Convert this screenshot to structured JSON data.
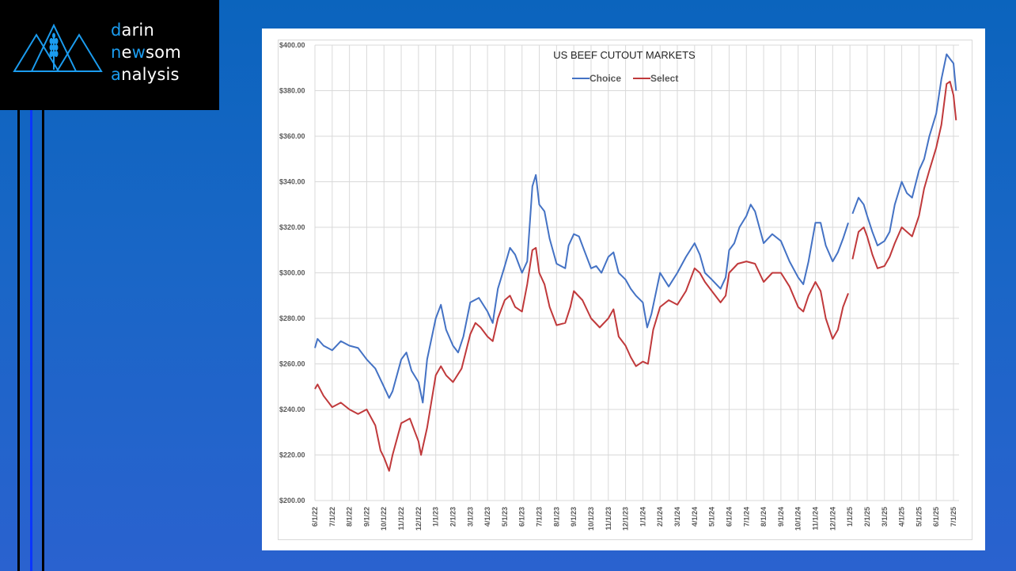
{
  "logo": {
    "lines": [
      {
        "first": "d",
        "rest": "arin"
      },
      {
        "first": "n",
        "mid": "e",
        "hl2": "w",
        "rest": "som"
      },
      {
        "first": "a",
        "rest": "nalysis"
      }
    ],
    "accent_color": "#1b9cef",
    "icon": "mountains-wheat-icon"
  },
  "chart_data": {
    "type": "line",
    "title": "US BEEF CUTOUT MARKETS",
    "xlabel": "",
    "ylabel": "",
    "ylim": [
      200,
      400
    ],
    "y_ticks": [
      "$200.00",
      "$220.00",
      "$240.00",
      "$260.00",
      "$280.00",
      "$300.00",
      "$320.00",
      "$340.00",
      "$360.00",
      "$380.00",
      "$400.00"
    ],
    "y_tick_values": [
      200,
      220,
      240,
      260,
      280,
      300,
      320,
      340,
      360,
      380,
      400
    ],
    "x_ticks": [
      "6/1/22",
      "7/1/22",
      "8/1/22",
      "9/1/22",
      "10/1/22",
      "11/1/22",
      "12/1/22",
      "1/1/23",
      "2/1/23",
      "3/1/23",
      "4/1/23",
      "5/1/23",
      "6/1/23",
      "7/1/23",
      "8/1/23",
      "9/1/23",
      "10/1/23",
      "11/1/23",
      "12/1/23",
      "1/1/24",
      "2/1/24",
      "3/1/24",
      "4/1/24",
      "5/1/24",
      "6/1/24",
      "7/1/24",
      "8/1/24",
      "9/1/24",
      "10/1/24",
      "11/1/24",
      "12/1/24",
      "1/1/25",
      "2/1/25",
      "3/1/25",
      "4/1/25",
      "5/1/25",
      "6/1/25",
      "7/1/25"
    ],
    "x_unit": "months since 6/1/22",
    "grid": true,
    "legend": "top-center",
    "series": [
      {
        "name": "Choice",
        "color": "#4472c4",
        "segments": [
          [
            [
              0,
              267
            ],
            [
              0.15,
              271
            ],
            [
              0.5,
              268
            ],
            [
              1,
              266
            ],
            [
              1.5,
              270
            ],
            [
              2,
              268
            ],
            [
              2.5,
              267
            ],
            [
              3,
              262
            ],
            [
              3.5,
              258
            ],
            [
              4,
              250
            ],
            [
              4.3,
              245
            ],
            [
              4.5,
              248
            ],
            [
              5,
              262
            ],
            [
              5.3,
              265
            ],
            [
              5.6,
              257
            ],
            [
              6,
              252
            ],
            [
              6.25,
              243
            ],
            [
              6.5,
              262
            ],
            [
              7,
              280
            ],
            [
              7.3,
              286
            ],
            [
              7.6,
              275
            ],
            [
              8,
              268
            ],
            [
              8.3,
              265
            ],
            [
              8.6,
              272
            ],
            [
              9,
              287
            ],
            [
              9.5,
              289
            ],
            [
              10,
              283
            ],
            [
              10.3,
              278
            ],
            [
              10.6,
              293
            ],
            [
              11,
              303
            ],
            [
              11.3,
              311
            ],
            [
              11.6,
              308
            ],
            [
              12,
              300
            ],
            [
              12.3,
              305
            ],
            [
              12.6,
              338
            ],
            [
              12.8,
              343
            ],
            [
              13,
              330
            ],
            [
              13.3,
              327
            ],
            [
              13.6,
              315
            ],
            [
              14,
              304
            ],
            [
              14.5,
              302
            ],
            [
              14.7,
              312
            ],
            [
              15,
              317
            ],
            [
              15.3,
              316
            ],
            [
              15.6,
              310
            ],
            [
              16,
              302
            ],
            [
              16.3,
              303
            ],
            [
              16.6,
              300
            ],
            [
              17,
              307
            ],
            [
              17.3,
              309
            ],
            [
              17.6,
              300
            ],
            [
              18,
              297
            ],
            [
              18.3,
              293
            ],
            [
              18.6,
              290
            ],
            [
              19,
              287
            ],
            [
              19.25,
              276
            ],
            [
              19.5,
              282
            ],
            [
              20,
              300
            ],
            [
              20.5,
              294
            ],
            [
              21,
              300
            ],
            [
              21.5,
              307
            ],
            [
              22,
              313
            ],
            [
              22.3,
              308
            ],
            [
              22.6,
              300
            ],
            [
              23,
              297
            ],
            [
              23.5,
              293
            ],
            [
              23.8,
              298
            ],
            [
              24,
              310
            ],
            [
              24.3,
              313
            ],
            [
              24.6,
              320
            ],
            [
              25,
              325
            ],
            [
              25.25,
              330
            ],
            [
              25.5,
              327
            ],
            [
              26,
              313
            ],
            [
              26.5,
              317
            ],
            [
              27,
              314
            ],
            [
              27.5,
              305
            ],
            [
              28,
              298
            ],
            [
              28.3,
              295
            ],
            [
              28.6,
              305
            ],
            [
              29,
              322
            ],
            [
              29.3,
              322
            ],
            [
              29.6,
              312
            ],
            [
              30,
              305
            ],
            [
              30.3,
              309
            ],
            [
              30.6,
              315
            ],
            [
              30.9,
              322
            ]
          ],
          [
            [
              31.15,
              326
            ],
            [
              31.5,
              333
            ],
            [
              31.8,
              330
            ],
            [
              32,
              325
            ],
            [
              32.3,
              318
            ],
            [
              32.6,
              312
            ],
            [
              33,
              314
            ],
            [
              33.3,
              318
            ],
            [
              33.6,
              330
            ],
            [
              34,
              340
            ],
            [
              34.3,
              335
            ],
            [
              34.6,
              333
            ],
            [
              35,
              345
            ],
            [
              35.3,
              350
            ],
            [
              35.6,
              360
            ],
            [
              36,
              370
            ],
            [
              36.3,
              385
            ],
            [
              36.6,
              396
            ],
            [
              36.8,
              394
            ],
            [
              37,
              392
            ],
            [
              37.15,
              380
            ]
          ]
        ]
      },
      {
        "name": "Select",
        "color": "#c0393b",
        "segments": [
          [
            [
              0,
              249
            ],
            [
              0.15,
              251
            ],
            [
              0.5,
              246
            ],
            [
              1,
              241
            ],
            [
              1.5,
              243
            ],
            [
              2,
              240
            ],
            [
              2.5,
              238
            ],
            [
              3,
              240
            ],
            [
              3.5,
              233
            ],
            [
              3.8,
              222
            ],
            [
              4,
              219
            ],
            [
              4.3,
              213
            ],
            [
              4.5,
              220
            ],
            [
              5,
              234
            ],
            [
              5.5,
              236
            ],
            [
              5.8,
              230
            ],
            [
              6,
              226
            ],
            [
              6.15,
              220
            ],
            [
              6.5,
              232
            ],
            [
              7,
              255
            ],
            [
              7.3,
              259
            ],
            [
              7.6,
              255
            ],
            [
              8,
              252
            ],
            [
              8.5,
              258
            ],
            [
              9,
              273
            ],
            [
              9.3,
              278
            ],
            [
              9.6,
              276
            ],
            [
              10,
              272
            ],
            [
              10.3,
              270
            ],
            [
              10.6,
              280
            ],
            [
              11,
              288
            ],
            [
              11.3,
              290
            ],
            [
              11.6,
              285
            ],
            [
              12,
              283
            ],
            [
              12.3,
              295
            ],
            [
              12.6,
              310
            ],
            [
              12.8,
              311
            ],
            [
              13,
              300
            ],
            [
              13.3,
              295
            ],
            [
              13.6,
              285
            ],
            [
              14,
              277
            ],
            [
              14.5,
              278
            ],
            [
              14.8,
              285
            ],
            [
              15,
              292
            ],
            [
              15.5,
              288
            ],
            [
              16,
              280
            ],
            [
              16.5,
              276
            ],
            [
              17,
              280
            ],
            [
              17.3,
              284
            ],
            [
              17.6,
              272
            ],
            [
              18,
              268
            ],
            [
              18.3,
              263
            ],
            [
              18.6,
              259
            ],
            [
              19,
              261
            ],
            [
              19.3,
              260
            ],
            [
              19.6,
              275
            ],
            [
              20,
              285
            ],
            [
              20.5,
              288
            ],
            [
              21,
              286
            ],
            [
              21.5,
              292
            ],
            [
              22,
              302
            ],
            [
              22.3,
              300
            ],
            [
              22.6,
              296
            ],
            [
              23,
              292
            ],
            [
              23.5,
              287
            ],
            [
              23.8,
              290
            ],
            [
              24,
              300
            ],
            [
              24.5,
              304
            ],
            [
              25,
              305
            ],
            [
              25.5,
              304
            ],
            [
              26,
              296
            ],
            [
              26.5,
              300
            ],
            [
              27,
              300
            ],
            [
              27.5,
              294
            ],
            [
              28,
              285
            ],
            [
              28.3,
              283
            ],
            [
              28.6,
              290
            ],
            [
              29,
              296
            ],
            [
              29.3,
              292
            ],
            [
              29.6,
              280
            ],
            [
              30,
              271
            ],
            [
              30.3,
              275
            ],
            [
              30.6,
              285
            ],
            [
              30.9,
              291
            ]
          ],
          [
            [
              31.15,
              306
            ],
            [
              31.5,
              318
            ],
            [
              31.8,
              320
            ],
            [
              32,
              316
            ],
            [
              32.3,
              308
            ],
            [
              32.6,
              302
            ],
            [
              33,
              303
            ],
            [
              33.3,
              307
            ],
            [
              33.6,
              313
            ],
            [
              34,
              320
            ],
            [
              34.3,
              318
            ],
            [
              34.6,
              316
            ],
            [
              35,
              325
            ],
            [
              35.3,
              337
            ],
            [
              35.6,
              345
            ],
            [
              36,
              355
            ],
            [
              36.3,
              365
            ],
            [
              36.6,
              383
            ],
            [
              36.8,
              384
            ],
            [
              37,
              378
            ],
            [
              37.15,
              367
            ]
          ]
        ]
      }
    ]
  }
}
